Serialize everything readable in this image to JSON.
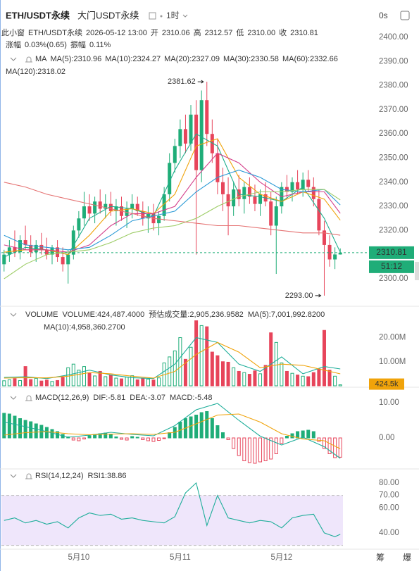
{
  "header": {
    "symbol": "ETH/USDT永续",
    "exchange": "大门USDT永续",
    "interval": "1时",
    "timer": "0s"
  },
  "info": {
    "line1": [
      {
        "text": "此小窗",
        "color": "#999"
      },
      {
        "text": "ETH/USDT永续",
        "color": "#777"
      },
      {
        "text": "2026-05-12 13:00",
        "color": "#777"
      },
      {
        "text": "开",
        "color": "#333"
      },
      {
        "text": "2310.06",
        "color": "#1fad78"
      },
      {
        "text": "高",
        "color": "#333"
      },
      {
        "text": "2312.57",
        "color": "#1fad78"
      },
      {
        "text": "低",
        "color": "#333"
      },
      {
        "text": "2310.00",
        "color": "#1fad78"
      },
      {
        "text": "收",
        "color": "#333"
      },
      {
        "text": "2310.81",
        "color": "#1fad78"
      }
    ],
    "line2": [
      {
        "text": "涨幅",
        "color": "#333"
      },
      {
        "text": "0.03%(0.65)",
        "color": "#1fad78"
      },
      {
        "text": "振幅",
        "color": "#333"
      },
      {
        "text": "0.11%",
        "color": "#1fad78"
      }
    ]
  },
  "chart_data": [
    {
      "type": "candlestick",
      "title": "MA",
      "up_color": "#1fad78",
      "down_color": "#e7455b",
      "xlim": [
        -0.5,
        63.5
      ],
      "ylim": [
        2288.6,
        2404.4
      ],
      "yticks": [
        {
          "value": 2300,
          "label": "2300.00"
        },
        {
          "value": 2310,
          "label": "2310.00"
        },
        {
          "value": 2320,
          "label": "2320.00"
        },
        {
          "value": 2330,
          "label": "2330.00"
        },
        {
          "value": 2340,
          "label": "2340.00"
        },
        {
          "value": 2350,
          "label": "2350.00"
        },
        {
          "value": 2360,
          "label": "2360.00"
        },
        {
          "value": 2370,
          "label": "2370.00"
        },
        {
          "value": 2380,
          "label": "2380.00"
        },
        {
          "value": 2390,
          "label": "2390.00"
        },
        {
          "value": 2400,
          "label": "2400.00"
        }
      ],
      "open": [
        2306,
        2310,
        2313,
        2311,
        2316,
        2314,
        2311,
        2314,
        2312,
        2310,
        2313,
        2309,
        2306,
        2310,
        2320,
        2325,
        2330,
        2327,
        2332,
        2329,
        2331,
        2328,
        2330,
        2326,
        2329,
        2331,
        2328,
        2325,
        2327,
        2323,
        2326,
        2335,
        2348,
        2355,
        2362,
        2356,
        2368,
        2345,
        2374,
        2360,
        2352,
        2340,
        2335,
        2330,
        2337,
        2333,
        2338,
        2334,
        2331,
        2335,
        2332,
        2322,
        2330,
        2338,
        2336,
        2340,
        2337,
        2341,
        2338,
        2333,
        2320,
        2314,
        2308,
        2310.06
      ],
      "high": [
        2312,
        2316,
        2320,
        2318,
        2322,
        2318,
        2316,
        2319,
        2317,
        2314,
        2316,
        2313,
        2312,
        2322,
        2328,
        2336,
        2335,
        2334,
        2337,
        2335,
        2336,
        2333,
        2334,
        2332,
        2335,
        2334,
        2332,
        2330,
        2331,
        2328,
        2338,
        2352,
        2358,
        2366,
        2368,
        2372,
        2374,
        2378,
        2381.62,
        2366,
        2358,
        2346,
        2342,
        2340,
        2343,
        2340,
        2342,
        2339,
        2337,
        2340,
        2336,
        2334,
        2340,
        2343,
        2342,
        2345,
        2344,
        2345,
        2342,
        2337,
        2324,
        2318,
        2313,
        2312.57
      ],
      "low": [
        2303,
        2307,
        2309,
        2308,
        2312,
        2309,
        2307,
        2310,
        2308,
        2306,
        2307,
        2303,
        2298,
        2308,
        2317,
        2322,
        2324,
        2323,
        2327,
        2325,
        2326,
        2322,
        2324,
        2321,
        2325,
        2326,
        2322,
        2319,
        2320,
        2318,
        2324,
        2332,
        2344,
        2350,
        2352,
        2353,
        2310,
        2340,
        2355,
        2348,
        2335,
        2328,
        2318,
        2326,
        2330,
        2327,
        2331,
        2328,
        2326,
        2330,
        2318,
        2302,
        2327,
        2333,
        2332,
        2335,
        2334,
        2336,
        2330,
        2318,
        2293.0,
        2305,
        2304,
        2310.0
      ],
      "close": [
        2310,
        2313,
        2311,
        2316,
        2314,
        2311,
        2314,
        2312,
        2310,
        2313,
        2309,
        2306,
        2310,
        2320,
        2325,
        2330,
        2327,
        2332,
        2329,
        2331,
        2328,
        2330,
        2326,
        2329,
        2331,
        2328,
        2325,
        2327,
        2323,
        2326,
        2335,
        2348,
        2355,
        2362,
        2356,
        2368,
        2345,
        2374,
        2360,
        2352,
        2340,
        2335,
        2330,
        2337,
        2333,
        2338,
        2334,
        2331,
        2335,
        2332,
        2322,
        2330,
        2338,
        2336,
        2340,
        2337,
        2341,
        2338,
        2333,
        2320,
        2314,
        2308,
        2310.06,
        2310.81
      ],
      "series": [
        {
          "name": "MA(5)",
          "label": "MA(5):2310.96",
          "color": "#1fae8c",
          "x": [
            0,
            4,
            8,
            12,
            16,
            20,
            24,
            28,
            32,
            36,
            40,
            44,
            48,
            52,
            56,
            60,
            63
          ],
          "values": [
            2309,
            2313,
            2312,
            2310,
            2325,
            2330,
            2329,
            2326,
            2345,
            2360,
            2355,
            2335,
            2334,
            2332,
            2338,
            2325,
            2310.96
          ]
        },
        {
          "name": "MA(10)",
          "label": "MA(10):2324.27",
          "color": "#f0a30a",
          "x": [
            0,
            4,
            8,
            12,
            16,
            20,
            24,
            28,
            32,
            36,
            40,
            44,
            48,
            52,
            56,
            60,
            63
          ],
          "values": [
            2311,
            2312,
            2312,
            2310,
            2318,
            2328,
            2329,
            2327,
            2335,
            2355,
            2358,
            2342,
            2335,
            2332,
            2336,
            2333,
            2324.27
          ]
        },
        {
          "name": "MA(20)",
          "label": "MA(20):2327.09",
          "color": "#d4418c",
          "x": [
            0,
            4,
            8,
            12,
            16,
            20,
            24,
            28,
            32,
            36,
            40,
            44,
            48,
            52,
            56,
            60,
            63
          ],
          "values": [
            2314,
            2312,
            2312,
            2311,
            2314,
            2322,
            2327,
            2327,
            2330,
            2342,
            2352,
            2348,
            2340,
            2334,
            2336,
            2336,
            2327.09
          ]
        },
        {
          "name": "MA(30)",
          "label": "MA(30):2330.58",
          "color": "#2b9ad6",
          "x": [
            0,
            4,
            8,
            12,
            16,
            20,
            24,
            28,
            32,
            36,
            40,
            44,
            48,
            52,
            56,
            60,
            63
          ],
          "values": [
            2318,
            2314,
            2313,
            2312,
            2313,
            2318,
            2324,
            2326,
            2328,
            2336,
            2342,
            2345,
            2342,
            2337,
            2336,
            2337,
            2330.58
          ]
        },
        {
          "name": "MA(60)",
          "label": "MA(60):2332.66",
          "color": "#9ccc65",
          "x": [
            0,
            4,
            8,
            12,
            16,
            20,
            24,
            28,
            32,
            36,
            40,
            44,
            48,
            52,
            56,
            60,
            63
          ],
          "values": [
            2300,
            2306,
            2310,
            2311,
            2312,
            2315,
            2319,
            2321,
            2322,
            2325,
            2330,
            2334,
            2336,
            2336,
            2337,
            2337,
            2332.66
          ]
        },
        {
          "name": "MA(120)",
          "label": "MA(120):2318.02",
          "color": "#e57373",
          "x": [
            0,
            4,
            8,
            12,
            16,
            20,
            24,
            28,
            32,
            36,
            40,
            44,
            48,
            52,
            56,
            60,
            63
          ],
          "values": [
            2340,
            2338,
            2335,
            2333,
            2331,
            2329,
            2327,
            2325,
            2324,
            2323,
            2322,
            2322,
            2321,
            2320,
            2319,
            2319,
            2318.02
          ]
        }
      ],
      "annotations": [
        {
          "label": "2381.62",
          "x": 38,
          "y": 2381.62
        },
        {
          "label": "2293.00",
          "x": 60,
          "y": 2293.0
        }
      ],
      "last_price": {
        "value": 2310.81,
        "label": "2310.81"
      },
      "countdown": "51:12"
    },
    {
      "type": "bar",
      "title": "VOLUME",
      "ylim": [
        0,
        33000000
      ],
      "yticks": [
        {
          "value": 10000000,
          "label": "10.00M"
        },
        {
          "value": 20000000,
          "label": "20.00M"
        }
      ],
      "readouts": [
        {
          "text": "VOLUME:424,487.4000",
          "color": "#666"
        },
        {
          "text": "预估成交量:2,905,236.9582",
          "color": "#666"
        }
      ],
      "values": [
        2100000,
        2500000,
        3000000,
        2200000,
        8000000,
        2600000,
        3100000,
        2000000,
        2400000,
        1800000,
        2200000,
        3500000,
        7500000,
        9000000,
        6500000,
        8000000,
        5200000,
        4100000,
        6000000,
        3800000,
        4500000,
        3200000,
        2900000,
        3600000,
        4200000,
        2500000,
        3100000,
        2800000,
        2400000,
        3300000,
        9500000,
        12000000,
        14500000,
        20000000,
        11000000,
        16000000,
        27000000,
        25000000,
        24500000,
        14000000,
        12500000,
        10000000,
        9800000,
        7500000,
        6000000,
        5500000,
        4800000,
        6200000,
        5000000,
        8500000,
        22000000,
        18000000,
        9500000,
        6000000,
        5200000,
        4500000,
        4000000,
        3800000,
        5500000,
        7000000,
        23000000,
        6500000,
        4000000,
        424487.4
      ],
      "series": [
        {
          "name": "MA(5)",
          "label": "MA(5):7,001,992.8200",
          "color": "#1fae9a",
          "x": [
            0,
            4,
            8,
            12,
            16,
            20,
            24,
            28,
            32,
            36,
            40,
            44,
            48,
            52,
            56,
            60,
            63
          ],
          "values": [
            3500000,
            3800000,
            3000000,
            4500000,
            6500000,
            4500000,
            3400000,
            3000000,
            9000000,
            20000000,
            18000000,
            9000000,
            6000000,
            12000000,
            5000000,
            8000000,
            7001992.82
          ]
        },
        {
          "name": "MA(10)",
          "label": "MA(10):4,958,360.2700",
          "color": "#f0a30a",
          "x": [
            0,
            4,
            8,
            12,
            16,
            20,
            24,
            28,
            32,
            36,
            40,
            44,
            48,
            52,
            56,
            60,
            63
          ],
          "values": [
            3200000,
            3400000,
            3300000,
            4000000,
            5500000,
            5000000,
            4000000,
            3200000,
            6000000,
            13000000,
            18000000,
            14000000,
            7500000,
            9000000,
            8500000,
            6500000,
            4958360.27
          ]
        }
      ],
      "last_value": {
        "value": 424487.4,
        "label": "424.5k",
        "color": "#f0a30a"
      }
    },
    {
      "type": "bar",
      "title": "MACD(12,26,9)",
      "ylim": [
        -8.6,
        13.8
      ],
      "yticks": [
        {
          "value": 0,
          "label": "0.00"
        },
        {
          "value": 10,
          "label": "10.00"
        }
      ],
      "up_color": "#1fad78",
      "down_color": "#e7455b",
      "values": [
        7,
        6.8,
        6.2,
        5.5,
        5,
        4.6,
        4,
        3.6,
        3,
        2.4,
        1.8,
        1.0,
        0.3,
        -0.6,
        -0.8,
        -0.3,
        0.6,
        1.0,
        1.2,
        1.4,
        1.0,
        0.3,
        -0.4,
        -0.6,
        0.4,
        0.2,
        -0.5,
        -0.8,
        -1.0,
        -0.7,
        -0.2,
        1.5,
        3.0,
        4.5,
        5.5,
        6.0,
        6.5,
        7.2,
        7.5,
        5.5,
        3.5,
        1.5,
        -0.5,
        -3,
        -5,
        -6.5,
        -7,
        -7.2,
        -6.8,
        -6.5,
        -6,
        -4.5,
        -1.5,
        0.5,
        1.2,
        1.8,
        2.0,
        2.2,
        1.8,
        -1.0,
        -3.0,
        -4.5,
        -5.6,
        -5.48
      ],
      "series": [
        {
          "name": "DIF",
          "label": "DIF:-5.81",
          "color": "#1fae9a",
          "x": [
            0,
            4,
            8,
            12,
            16,
            20,
            24,
            28,
            32,
            36,
            40,
            44,
            48,
            52,
            56,
            60,
            63
          ],
          "values": [
            4.5,
            3.2,
            1.8,
            0.2,
            0.8,
            1.6,
            1.0,
            0.6,
            3.5,
            8.0,
            9.8,
            5.0,
            0.5,
            -2.0,
            0.2,
            -2.5,
            -5.81
          ]
        },
        {
          "name": "DEA",
          "label": "DEA:-3.07",
          "color": "#f0a30a",
          "x": [
            0,
            4,
            8,
            12,
            16,
            20,
            24,
            28,
            32,
            36,
            40,
            44,
            48,
            52,
            56,
            60,
            63
          ],
          "values": [
            0.8,
            1.5,
            1.8,
            1.2,
            0.9,
            1.1,
            1.2,
            1.0,
            1.6,
            4.0,
            6.5,
            6.8,
            4.5,
            1.2,
            -0.3,
            -0.8,
            -3.07
          ]
        }
      ],
      "readouts": [
        {
          "text": "MACD:-5.48",
          "color": "#e7455b"
        }
      ]
    },
    {
      "type": "line",
      "title": "RSI(14,12,24)",
      "ylim": [
        27,
        90.1
      ],
      "yticks": [
        {
          "value": 40,
          "label": "40.00"
        },
        {
          "value": 60,
          "label": "60.00"
        },
        {
          "value": 70,
          "label": "70.00"
        },
        {
          "value": 80,
          "label": "80.00"
        }
      ],
      "band": [
        30,
        70
      ],
      "band_color": "#efe6fb",
      "xticks": [
        {
          "value": 14,
          "label": "5月10"
        },
        {
          "value": 33,
          "label": "5月11"
        },
        {
          "value": 52,
          "label": "5月12"
        }
      ],
      "series": [
        {
          "name": "RSI1",
          "label": "RSI1:38.86",
          "color": "#1fae9a",
          "x": [
            0,
            2,
            4,
            6,
            8,
            10,
            12,
            14,
            16,
            18,
            20,
            22,
            24,
            26,
            28,
            30,
            32,
            34,
            36,
            38,
            40,
            42,
            44,
            46,
            48,
            50,
            52,
            54,
            56,
            58,
            60,
            62,
            63
          ],
          "values": [
            50,
            52,
            48,
            50,
            47,
            49,
            44,
            52,
            56,
            54,
            55,
            51,
            52,
            50,
            49,
            48,
            53,
            72,
            80,
            46,
            70,
            52,
            50,
            48,
            50,
            49,
            44,
            52,
            54,
            55,
            40,
            37,
            38.86
          ]
        }
      ]
    }
  ],
  "footer_buttons": [
    "筹",
    "爆"
  ]
}
